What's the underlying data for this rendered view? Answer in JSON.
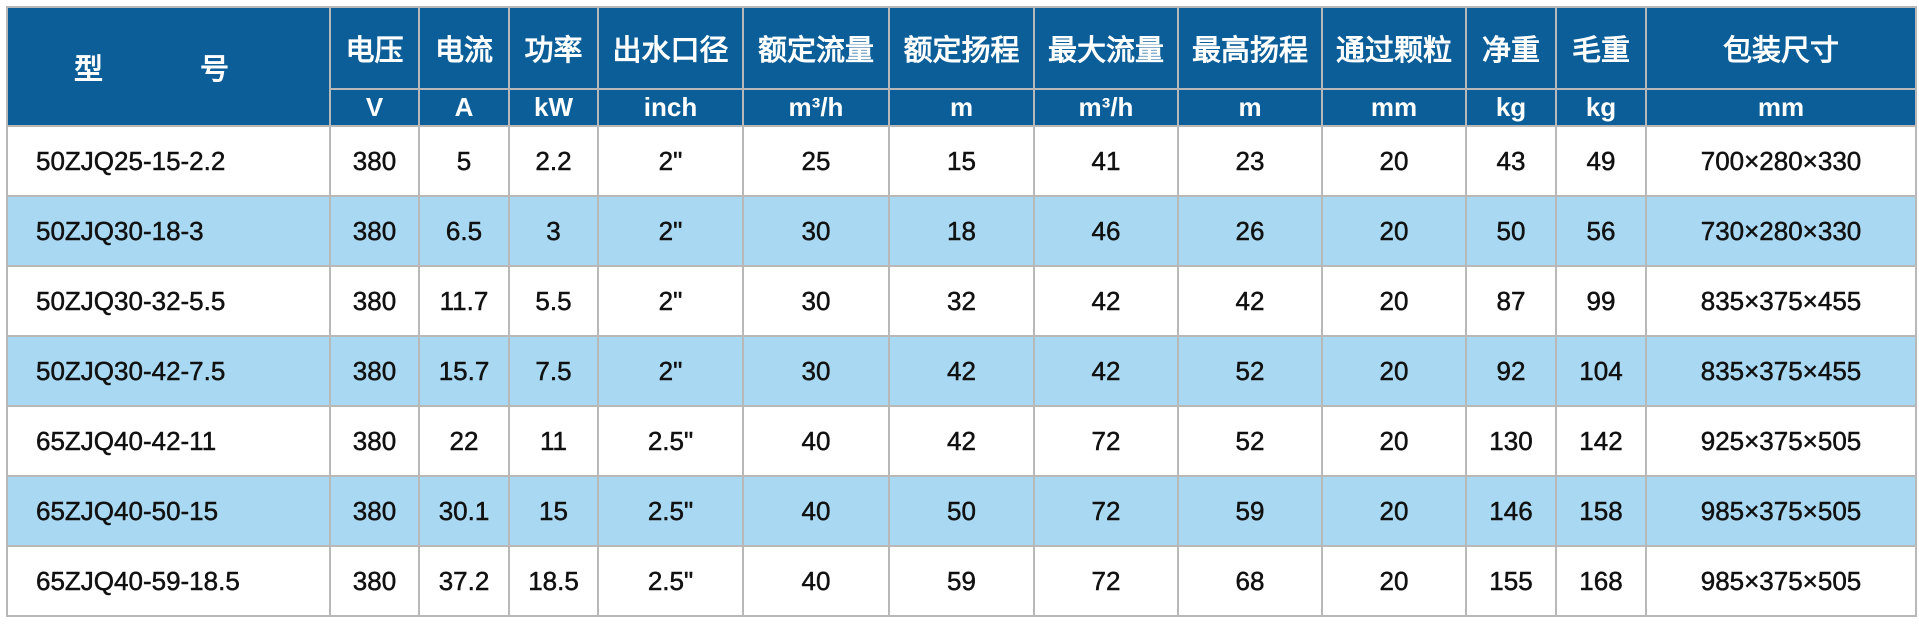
{
  "table": {
    "model_header": "型　号",
    "headers": [
      "电压",
      "电流",
      "功率",
      "出水口径",
      "额定流量",
      "额定扬程",
      "最大流量",
      "最高扬程",
      "通过颗粒",
      "净重",
      "毛重",
      "包装尺寸"
    ],
    "units": [
      "V",
      "A",
      "kW",
      "inch",
      "m³/h",
      "m",
      "m³/h",
      "m",
      "mm",
      "kg",
      "kg",
      "mm"
    ],
    "rows": [
      [
        "50ZJQ25-15-2.2",
        "380",
        "5",
        "2.2",
        "2\"",
        "25",
        "15",
        "41",
        "23",
        "20",
        "43",
        "49",
        "700×280×330"
      ],
      [
        "50ZJQ30-18-3",
        "380",
        "6.5",
        "3",
        "2\"",
        "30",
        "18",
        "46",
        "26",
        "20",
        "50",
        "56",
        "730×280×330"
      ],
      [
        "50ZJQ30-32-5.5",
        "380",
        "11.7",
        "5.5",
        "2\"",
        "30",
        "32",
        "42",
        "42",
        "20",
        "87",
        "99",
        "835×375×455"
      ],
      [
        "50ZJQ30-42-7.5",
        "380",
        "15.7",
        "7.5",
        "2\"",
        "30",
        "42",
        "42",
        "52",
        "20",
        "92",
        "104",
        "835×375×455"
      ],
      [
        "65ZJQ40-42-11",
        "380",
        "22",
        "11",
        "2.5\"",
        "40",
        "42",
        "72",
        "52",
        "20",
        "130",
        "142",
        "925×375×505"
      ],
      [
        "65ZJQ40-50-15",
        "380",
        "30.1",
        "15",
        "2.5\"",
        "40",
        "50",
        "72",
        "59",
        "20",
        "146",
        "158",
        "985×375×505"
      ],
      [
        "65ZJQ40-59-18.5",
        "380",
        "37.2",
        "18.5",
        "2.5\"",
        "40",
        "59",
        "72",
        "68",
        "20",
        "155",
        "168",
        "985×375×505"
      ]
    ]
  },
  "colors": {
    "header_bg": "#0b5e98",
    "alt_row_bg": "#a9d9f2",
    "border": "#b8b8b8"
  }
}
